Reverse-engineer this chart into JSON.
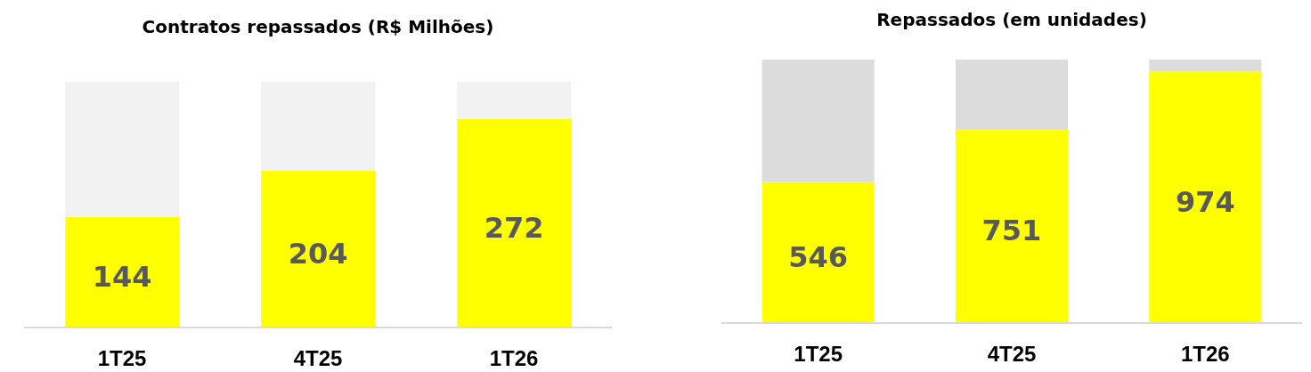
{
  "chart_data": [
    {
      "type": "bar",
      "title": "Contratos repassados (R$ Milhões)",
      "categories": [
        "1T25",
        "4T25",
        "1T26"
      ],
      "stacked": true,
      "tick_labels": "x",
      "ylim": [
        0,
        320
      ],
      "series": [
        {
          "color": "#ffff00",
          "values": [
            144,
            204,
            272
          ],
          "value_labels": [
            "144",
            "204",
            "272"
          ]
        },
        {
          "color": "#f2f2f2",
          "values": [
            176,
            116,
            48
          ],
          "value_labels": [
            null,
            null,
            null
          ]
        }
      ]
    },
    {
      "type": "bar",
      "title": "Repassados (em unidades)",
      "categories": [
        "1T25",
        "4T25",
        "1T26"
      ],
      "stacked": true,
      "tick_labels": "x",
      "ylim": [
        0,
        1020
      ],
      "series": [
        {
          "color": "#ffff00",
          "values": [
            546,
            751,
            974
          ],
          "value_labels": [
            "546",
            "751",
            "974"
          ]
        },
        {
          "color": "#dcdcdc",
          "values": [
            474,
            269,
            46
          ],
          "value_labels": [
            null,
            null,
            null
          ]
        }
      ]
    }
  ]
}
